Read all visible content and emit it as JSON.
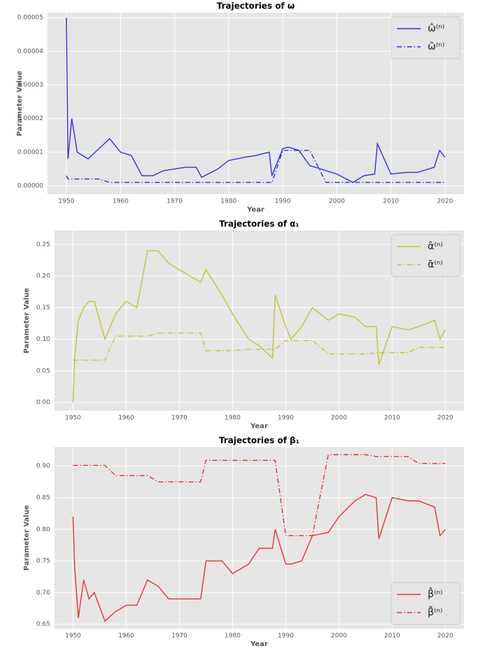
{
  "chart_data": [
    {
      "type": "line",
      "title": "Trajectories of ω",
      "xlabel": "Year",
      "ylabel": "Parameter Value",
      "x": [
        1950,
        1950.3,
        1951,
        1952,
        1953,
        1954,
        1956,
        1958,
        1960,
        1962,
        1964,
        1966,
        1968,
        1970,
        1972,
        1974,
        1975,
        1978,
        1980,
        1983,
        1985,
        1987.5,
        1988,
        1990,
        1991,
        1993,
        1995,
        1998,
        2000,
        2003,
        2005,
        2007,
        2007.5,
        2010,
        2013,
        2015,
        2018,
        2019,
        2020
      ],
      "xlim": [
        1946.5,
        2023.5
      ],
      "xticks": [
        1950,
        1960,
        1970,
        1980,
        1990,
        2000,
        2010,
        2020
      ],
      "ylim": [
        -2.5e-06,
        5.15e-05
      ],
      "yticks": [
        {
          "value": 0,
          "label": "0.00000"
        },
        {
          "value": 1e-05,
          "label": "0.00001"
        },
        {
          "value": 2e-05,
          "label": "0.00002"
        },
        {
          "value": 3e-05,
          "label": "0.00003"
        },
        {
          "value": 4e-05,
          "label": "0.00004"
        },
        {
          "value": 5e-05,
          "label": "0.00005"
        }
      ],
      "grid": true,
      "legend": "upper-right",
      "series": [
        {
          "name": "ω̂⁽ⁿ⁾",
          "color": "#3030e8",
          "linestyle": "solid",
          "values": [
            5e-05,
            8e-06,
            2e-05,
            1e-05,
            9e-06,
            8e-06,
            1.1e-05,
            1.4e-05,
            1e-05,
            9e-06,
            3e-06,
            3e-06,
            4.5e-06,
            5e-06,
            5.5e-06,
            5.5e-06,
            2.5e-06,
            5e-06,
            7.5e-06,
            8.5e-06,
            9e-06,
            1e-05,
            3e-06,
            1.1e-05,
            1.15e-05,
            1.05e-05,
            6e-06,
            4.5e-06,
            3.5e-06,
            1e-06,
            3e-06,
            3.5e-06,
            1.25e-05,
            3.5e-06,
            4e-06,
            4e-06,
            5.5e-06,
            1.05e-05,
            8.5e-06
          ]
        },
        {
          "name": "ω̃⁽ⁿ⁾",
          "color": "#3030e8",
          "linestyle": "dashdot",
          "values": [
            3e-06,
            2e-06,
            2e-06,
            2e-06,
            2e-06,
            2e-06,
            2e-06,
            1e-06,
            1e-06,
            1e-06,
            1e-06,
            1e-06,
            1e-06,
            1e-06,
            1e-06,
            1e-06,
            1e-06,
            1e-06,
            1e-06,
            1e-06,
            1e-06,
            1e-06,
            1e-06,
            1.05e-05,
            1.05e-05,
            1.05e-05,
            1.05e-05,
            1e-06,
            1e-06,
            1e-06,
            1e-06,
            1e-06,
            1e-06,
            1e-06,
            1e-06,
            1e-06,
            1e-06,
            1e-06,
            1e-06
          ]
        }
      ]
    },
    {
      "type": "line",
      "title": "Trajectories of α₁",
      "xlabel": "Year",
      "ylabel": "Parameter Value",
      "x": [
        1950,
        1950.3,
        1951,
        1952,
        1953,
        1954,
        1956,
        1958,
        1960,
        1962,
        1964,
        1966,
        1968,
        1970,
        1972,
        1974,
        1975,
        1978,
        1980,
        1983,
        1985,
        1987.5,
        1988,
        1990,
        1991,
        1993,
        1995,
        1998,
        2000,
        2003,
        2005,
        2007,
        2007.5,
        2010,
        2013,
        2015,
        2018,
        2019,
        2020
      ],
      "xlim": [
        1946.5,
        2023.5
      ],
      "xticks": [
        1950,
        1960,
        1970,
        1980,
        1990,
        2000,
        2010,
        2020
      ],
      "ylim": [
        -0.013,
        0.272
      ],
      "yticks": [
        {
          "value": 0,
          "label": "0.00"
        },
        {
          "value": 0.05,
          "label": "0.05"
        },
        {
          "value": 0.1,
          "label": "0.10"
        },
        {
          "value": 0.15,
          "label": "0.15"
        },
        {
          "value": 0.2,
          "label": "0.20"
        },
        {
          "value": 0.25,
          "label": "0.25"
        }
      ],
      "grid": true,
      "legend": "upper-right",
      "series": [
        {
          "name": "α̂⁽ⁿ⁾",
          "color": "#c4c430",
          "linestyle": "solid",
          "values": [
            0.0,
            0.07,
            0.13,
            0.15,
            0.16,
            0.16,
            0.1,
            0.14,
            0.16,
            0.15,
            0.24,
            0.24,
            0.22,
            0.21,
            0.2,
            0.19,
            0.21,
            0.17,
            0.14,
            0.1,
            0.09,
            0.07,
            0.17,
            0.12,
            0.1,
            0.12,
            0.15,
            0.13,
            0.14,
            0.135,
            0.12,
            0.12,
            0.06,
            0.12,
            0.115,
            0.12,
            0.13,
            0.1,
            0.115
          ]
        },
        {
          "name": "α̃⁽ⁿ⁾",
          "color": "#c4c430",
          "linestyle": "dashdot",
          "values": [
            0.067,
            0.067,
            0.067,
            0.067,
            0.067,
            0.067,
            0.067,
            0.105,
            0.105,
            0.105,
            0.105,
            0.11,
            0.11,
            0.11,
            0.11,
            0.11,
            0.082,
            0.082,
            0.082,
            0.084,
            0.084,
            0.084,
            0.084,
            0.098,
            0.098,
            0.098,
            0.098,
            0.077,
            0.077,
            0.077,
            0.077,
            0.078,
            0.079,
            0.079,
            0.079,
            0.087,
            0.087,
            0.087,
            0.087
          ]
        }
      ]
    },
    {
      "type": "line",
      "title": "Trajectories of β₁",
      "xlabel": "Year",
      "ylabel": "Parameter Value",
      "x": [
        1950,
        1950.3,
        1951,
        1952,
        1953,
        1954,
        1956,
        1958,
        1960,
        1962,
        1964,
        1966,
        1968,
        1970,
        1972,
        1974,
        1975,
        1978,
        1980,
        1983,
        1985,
        1987.5,
        1988,
        1990,
        1991,
        1993,
        1995,
        1998,
        2000,
        2003,
        2005,
        2007,
        2007.5,
        2010,
        2013,
        2015,
        2018,
        2019,
        2020
      ],
      "xlim": [
        1946.5,
        2023.5
      ],
      "xticks": [
        1950,
        1960,
        1970,
        1980,
        1990,
        2000,
        2010,
        2020
      ],
      "ylim": [
        0.643,
        0.93
      ],
      "yticks": [
        {
          "value": 0.65,
          "label": "0.65"
        },
        {
          "value": 0.7,
          "label": "0.70"
        },
        {
          "value": 0.75,
          "label": "0.75"
        },
        {
          "value": 0.8,
          "label": "0.80"
        },
        {
          "value": 0.85,
          "label": "0.85"
        },
        {
          "value": 0.9,
          "label": "0.90"
        }
      ],
      "grid": true,
      "legend": "lower-right",
      "series": [
        {
          "name": "β̂⁽ⁿ⁾",
          "color": "#ec3030",
          "linestyle": "solid",
          "values": [
            0.82,
            0.74,
            0.66,
            0.72,
            0.69,
            0.7,
            0.655,
            0.67,
            0.68,
            0.68,
            0.72,
            0.71,
            0.69,
            0.69,
            0.69,
            0.69,
            0.75,
            0.75,
            0.73,
            0.745,
            0.77,
            0.77,
            0.8,
            0.745,
            0.745,
            0.75,
            0.79,
            0.795,
            0.82,
            0.845,
            0.855,
            0.85,
            0.785,
            0.85,
            0.845,
            0.845,
            0.835,
            0.79,
            0.8
          ]
        },
        {
          "name": "β̃⁽ⁿ⁾",
          "color": "#ec3030",
          "linestyle": "dashdot",
          "values": [
            0.901,
            0.901,
            0.901,
            0.901,
            0.901,
            0.901,
            0.901,
            0.885,
            0.885,
            0.885,
            0.885,
            0.875,
            0.875,
            0.875,
            0.875,
            0.875,
            0.909,
            0.909,
            0.909,
            0.909,
            0.909,
            0.909,
            0.909,
            0.79,
            0.79,
            0.79,
            0.79,
            0.918,
            0.918,
            0.918,
            0.918,
            0.915,
            0.915,
            0.915,
            0.915,
            0.904,
            0.904,
            0.904,
            0.904
          ]
        }
      ]
    }
  ]
}
